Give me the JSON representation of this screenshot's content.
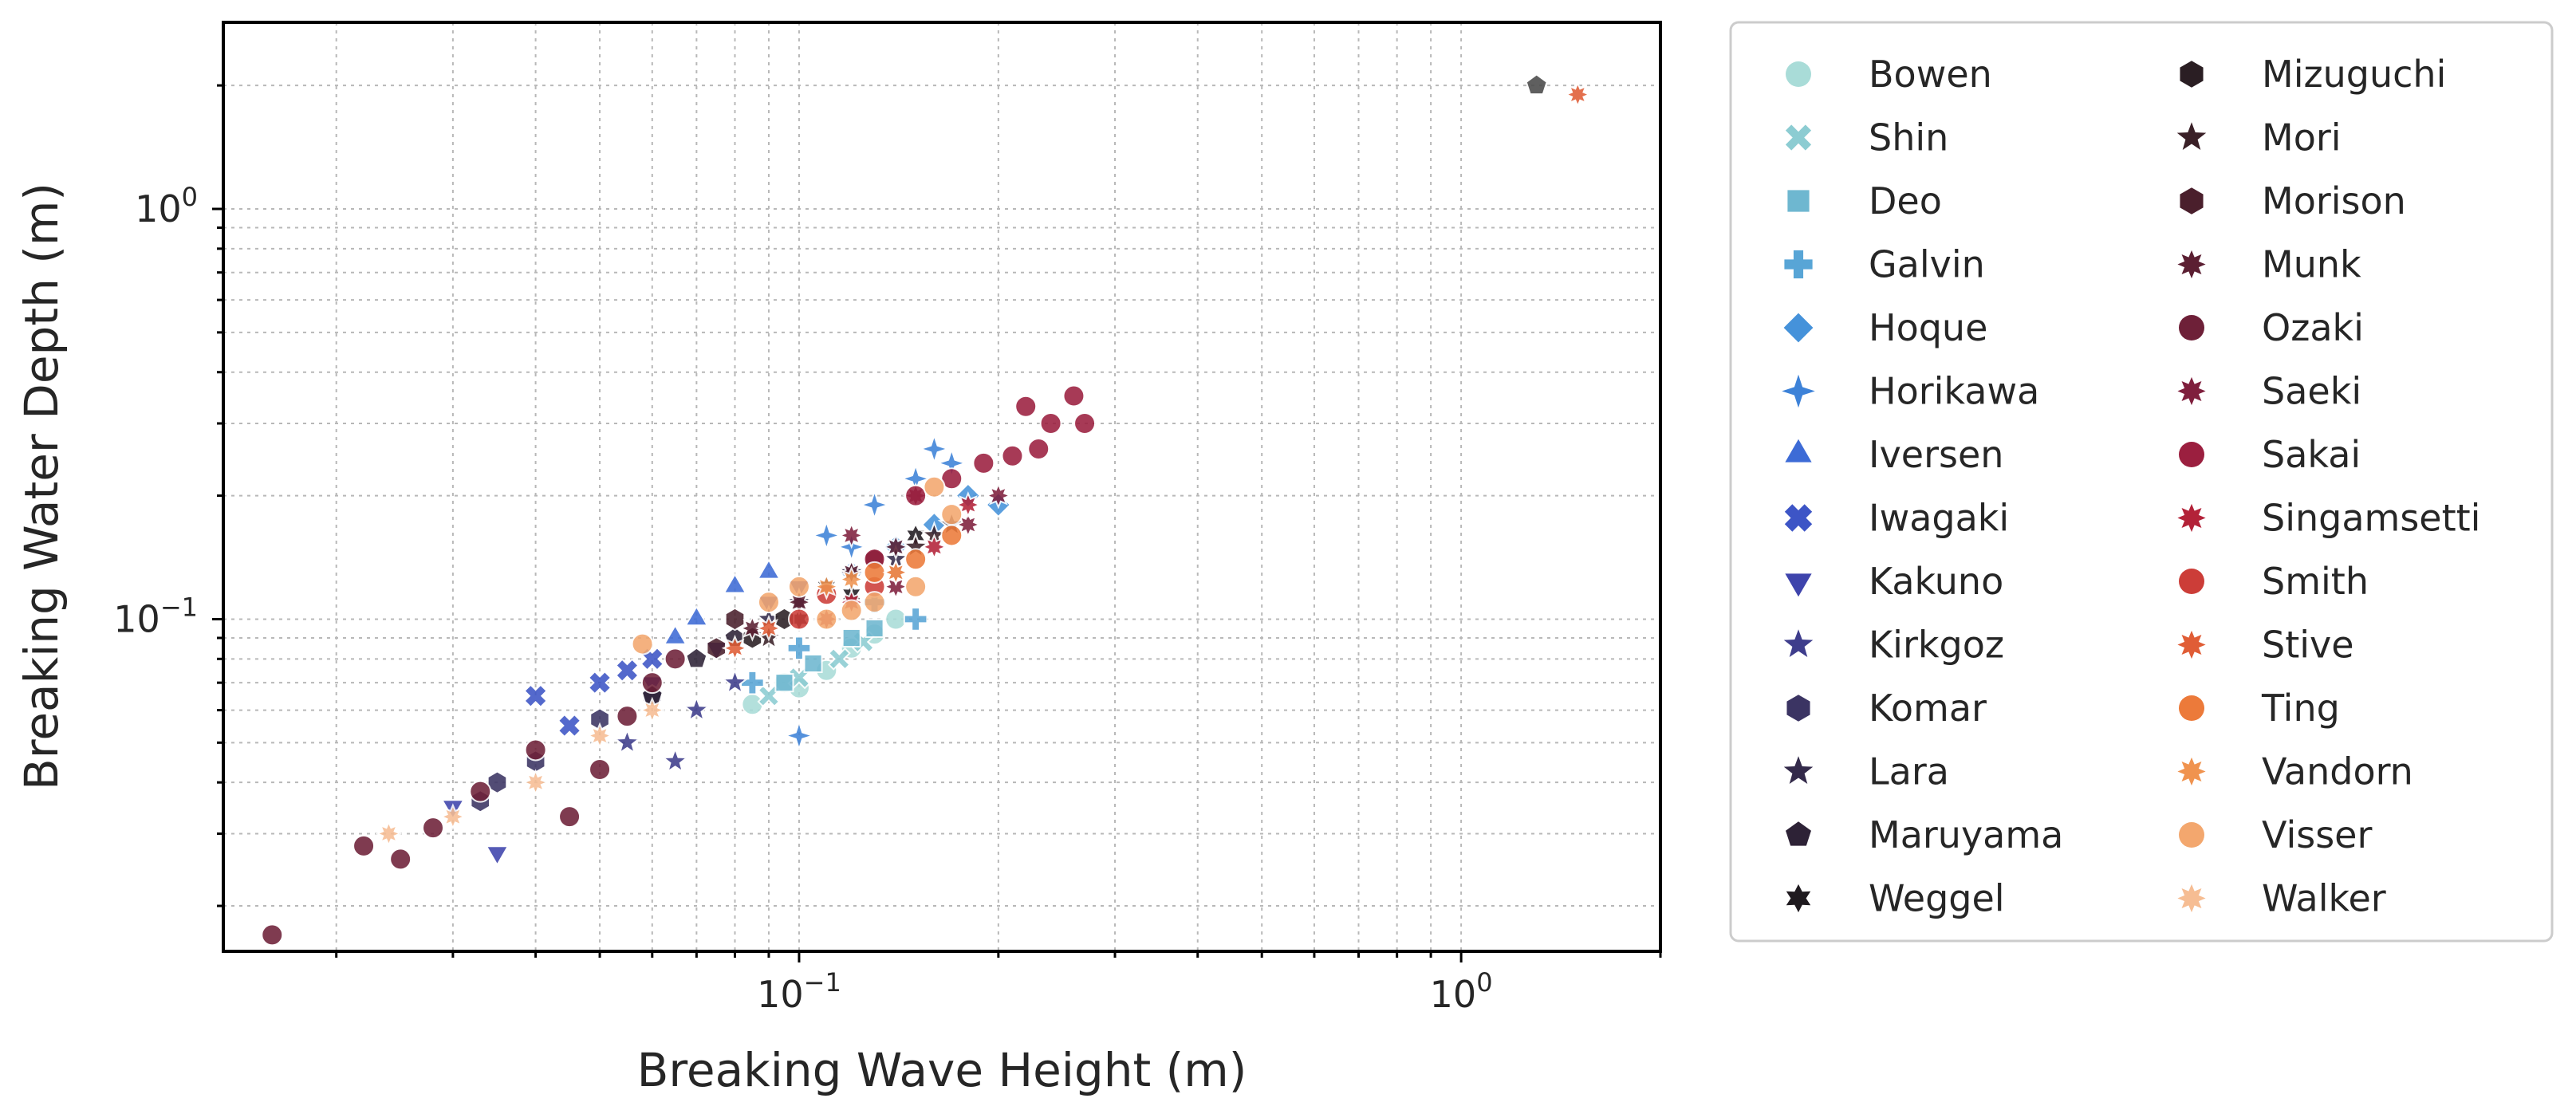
{
  "chart_data": {
    "type": "scatter",
    "title": "",
    "xlabel": "Breaking Wave Height (m)",
    "ylabel": "Breaking Water Depth (m)",
    "xscale": "log",
    "yscale": "log",
    "xlim": [
      0.0135,
      2.0
    ],
    "ylim": [
      0.0155,
      2.85
    ],
    "grid": true,
    "legend_position": "outside-right",
    "x_ticks": [
      {
        "value": 0.1,
        "base": "10",
        "exp": "−1"
      },
      {
        "value": 1.0,
        "base": "10",
        "exp": "0"
      }
    ],
    "y_ticks": [
      {
        "value": 0.1,
        "base": "10",
        "exp": "−1"
      },
      {
        "value": 1.0,
        "base": "10",
        "exp": "0"
      }
    ],
    "series": [
      {
        "name": "Bowen",
        "marker": "circle",
        "color": "#a9dcd8",
        "points": [
          [
            0.1,
            0.068
          ],
          [
            0.12,
            0.085
          ],
          [
            0.13,
            0.092
          ],
          [
            0.11,
            0.075
          ],
          [
            0.085,
            0.062
          ],
          [
            0.14,
            0.1
          ],
          [
            0.095,
            0.07
          ]
        ]
      },
      {
        "name": "Shin",
        "marker": "x",
        "color": "#8cccd2",
        "points": [
          [
            0.09,
            0.065
          ],
          [
            0.1,
            0.072
          ],
          [
            0.115,
            0.08
          ],
          [
            0.125,
            0.088
          ]
        ]
      },
      {
        "name": "Deo",
        "marker": "square",
        "color": "#6eb7d0",
        "points": [
          [
            0.095,
            0.07
          ],
          [
            0.105,
            0.078
          ],
          [
            0.12,
            0.09
          ],
          [
            0.13,
            0.095
          ]
        ]
      },
      {
        "name": "Galvin",
        "marker": "plus",
        "color": "#58a5d6",
        "points": [
          [
            0.15,
            0.1
          ],
          [
            0.1,
            0.085
          ],
          [
            0.085,
            0.07
          ],
          [
            0.13,
            0.11
          ]
        ]
      },
      {
        "name": "Hoque",
        "marker": "diamond",
        "color": "#4592da",
        "points": [
          [
            0.2,
            0.19
          ],
          [
            0.18,
            0.2
          ],
          [
            0.16,
            0.17
          ],
          [
            0.14,
            0.15
          ],
          [
            0.12,
            0.13
          ]
        ]
      },
      {
        "name": "Horikawa",
        "marker": "star4",
        "color": "#3d82d8",
        "points": [
          [
            0.16,
            0.26
          ],
          [
            0.15,
            0.22
          ],
          [
            0.17,
            0.24
          ],
          [
            0.13,
            0.19
          ],
          [
            0.1,
            0.052
          ],
          [
            0.12,
            0.15
          ],
          [
            0.11,
            0.16
          ]
        ]
      },
      {
        "name": "Iversen",
        "marker": "triangle-up",
        "color": "#3d6bd6",
        "points": [
          [
            0.08,
            0.12
          ],
          [
            0.09,
            0.13
          ],
          [
            0.07,
            0.1
          ],
          [
            0.065,
            0.09
          ]
        ]
      },
      {
        "name": "Iwagaki",
        "marker": "x-thick",
        "color": "#3d55c6",
        "points": [
          [
            0.04,
            0.065
          ],
          [
            0.05,
            0.07
          ],
          [
            0.055,
            0.075
          ],
          [
            0.06,
            0.08
          ],
          [
            0.045,
            0.055
          ]
        ]
      },
      {
        "name": "Kakuno",
        "marker": "triangle-down",
        "color": "#3e44ac",
        "points": [
          [
            0.035,
            0.027
          ],
          [
            0.03,
            0.035
          ],
          [
            0.06,
            0.07
          ],
          [
            0.075,
            0.085
          ],
          [
            0.09,
            0.11
          ],
          [
            0.1,
            0.12
          ]
        ]
      },
      {
        "name": "Kirkgoz",
        "marker": "star5",
        "color": "#3e3d8c",
        "points": [
          [
            0.055,
            0.05
          ],
          [
            0.065,
            0.045
          ],
          [
            0.07,
            0.06
          ],
          [
            0.08,
            0.07
          ]
        ]
      },
      {
        "name": "Komar",
        "marker": "hexagon",
        "color": "#3b3463",
        "points": [
          [
            0.033,
            0.036
          ],
          [
            0.035,
            0.04
          ],
          [
            0.04,
            0.045
          ],
          [
            0.06,
            0.065
          ],
          [
            0.05,
            0.057
          ]
        ]
      },
      {
        "name": "Lara",
        "marker": "star5",
        "color": "#332a4a",
        "points": [
          [
            0.09,
            0.1
          ],
          [
            0.1,
            0.11
          ],
          [
            0.12,
            0.13
          ],
          [
            0.14,
            0.14
          ]
        ]
      },
      {
        "name": "Maruyama",
        "marker": "pentagon",
        "color": "#2d2236",
        "points": [
          [
            0.07,
            0.08
          ],
          [
            0.08,
            0.09
          ],
          [
            0.06,
            0.065
          ]
        ]
      },
      {
        "name": "Weggel",
        "marker": "star6",
        "color": "#1f1a1f",
        "points": [
          [
            0.1,
            0.1
          ],
          [
            0.12,
            0.115
          ],
          [
            0.15,
            0.16
          ],
          [
            0.11,
            0.12
          ]
        ]
      },
      {
        "name": "Mizuguchi",
        "marker": "hexagon",
        "color": "#2a1e23",
        "points": [
          [
            0.085,
            0.09
          ],
          [
            0.095,
            0.1
          ],
          [
            0.13,
            0.14
          ]
        ]
      },
      {
        "name": "Mori",
        "marker": "star5",
        "color": "#3a2027",
        "points": [
          [
            0.15,
            0.15
          ],
          [
            0.16,
            0.16
          ],
          [
            0.17,
            0.17
          ],
          [
            0.09,
            0.09
          ]
        ]
      },
      {
        "name": "Morison",
        "marker": "hexagon",
        "color": "#4a1f2c",
        "points": [
          [
            0.075,
            0.085
          ],
          [
            0.08,
            0.1
          ]
        ]
      },
      {
        "name": "Munk",
        "marker": "star8",
        "color": "#5b1f32",
        "points": [
          [
            0.14,
            0.15
          ],
          [
            0.12,
            0.13
          ],
          [
            0.1,
            0.11
          ],
          [
            0.085,
            0.095
          ]
        ]
      },
      {
        "name": "Ozaki",
        "marker": "circle",
        "color": "#6e2038",
        "points": [
          [
            0.016,
            0.017
          ],
          [
            0.022,
            0.028
          ],
          [
            0.025,
            0.026
          ],
          [
            0.028,
            0.031
          ],
          [
            0.033,
            0.038
          ],
          [
            0.04,
            0.048
          ],
          [
            0.045,
            0.033
          ],
          [
            0.05,
            0.043
          ],
          [
            0.055,
            0.058
          ],
          [
            0.06,
            0.07
          ],
          [
            0.065,
            0.08
          ]
        ]
      },
      {
        "name": "Saeki",
        "marker": "star8",
        "color": "#7f1f3d",
        "points": [
          [
            0.12,
            0.16
          ],
          [
            0.15,
            0.2
          ],
          [
            0.18,
            0.17
          ],
          [
            0.2,
            0.2
          ],
          [
            0.14,
            0.12
          ]
        ]
      },
      {
        "name": "Sakai",
        "marker": "circle",
        "color": "#9b1f3f",
        "points": [
          [
            0.22,
            0.33
          ],
          [
            0.24,
            0.3
          ],
          [
            0.26,
            0.35
          ],
          [
            0.27,
            0.3
          ],
          [
            0.23,
            0.26
          ],
          [
            0.21,
            0.25
          ],
          [
            0.19,
            0.24
          ],
          [
            0.17,
            0.22
          ],
          [
            0.15,
            0.2
          ],
          [
            0.13,
            0.14
          ]
        ]
      },
      {
        "name": "Singamsetti",
        "marker": "star8",
        "color": "#b32238",
        "points": [
          [
            0.12,
            0.11
          ],
          [
            0.14,
            0.13
          ],
          [
            0.16,
            0.15
          ],
          [
            0.18,
            0.19
          ],
          [
            0.11,
            0.1
          ]
        ]
      },
      {
        "name": "Smith",
        "marker": "circle",
        "color": "#cc3d38",
        "points": [
          [
            0.1,
            0.1
          ],
          [
            0.11,
            0.115
          ],
          [
            0.13,
            0.12
          ]
        ]
      },
      {
        "name": "Stive",
        "marker": "star8",
        "color": "#e05d36",
        "points": [
          [
            1.5,
            1.9
          ],
          [
            0.08,
            0.085
          ],
          [
            0.09,
            0.095
          ]
        ]
      },
      {
        "name": "Ting",
        "marker": "circle",
        "color": "#ec7a3a",
        "points": [
          [
            0.17,
            0.16
          ],
          [
            0.15,
            0.14
          ],
          [
            0.13,
            0.13
          ]
        ]
      },
      {
        "name": "Vandorn",
        "marker": "star8",
        "color": "#f0934f",
        "points": [
          [
            0.11,
            0.12
          ],
          [
            0.12,
            0.125
          ],
          [
            0.14,
            0.13
          ]
        ]
      },
      {
        "name": "Visser",
        "marker": "circle",
        "color": "#f3a76e",
        "points": [
          [
            0.09,
            0.11
          ],
          [
            0.1,
            0.12
          ],
          [
            0.11,
            0.1
          ],
          [
            0.12,
            0.105
          ],
          [
            0.13,
            0.11
          ],
          [
            0.15,
            0.12
          ],
          [
            0.16,
            0.21
          ],
          [
            0.17,
            0.18
          ],
          [
            0.058,
            0.087
          ]
        ]
      },
      {
        "name": "Walker",
        "marker": "star8",
        "color": "#f6bd93",
        "points": [
          [
            0.024,
            0.03
          ],
          [
            0.03,
            0.033
          ],
          [
            0.04,
            0.04
          ],
          [
            0.05,
            0.052
          ],
          [
            0.06,
            0.06
          ]
        ]
      }
    ],
    "extra_points": [
      {
        "label_ref": "Maruyama",
        "marker": "pentagon",
        "color": "#4a4a4a",
        "x": 1.3,
        "y": 2.0
      }
    ]
  }
}
